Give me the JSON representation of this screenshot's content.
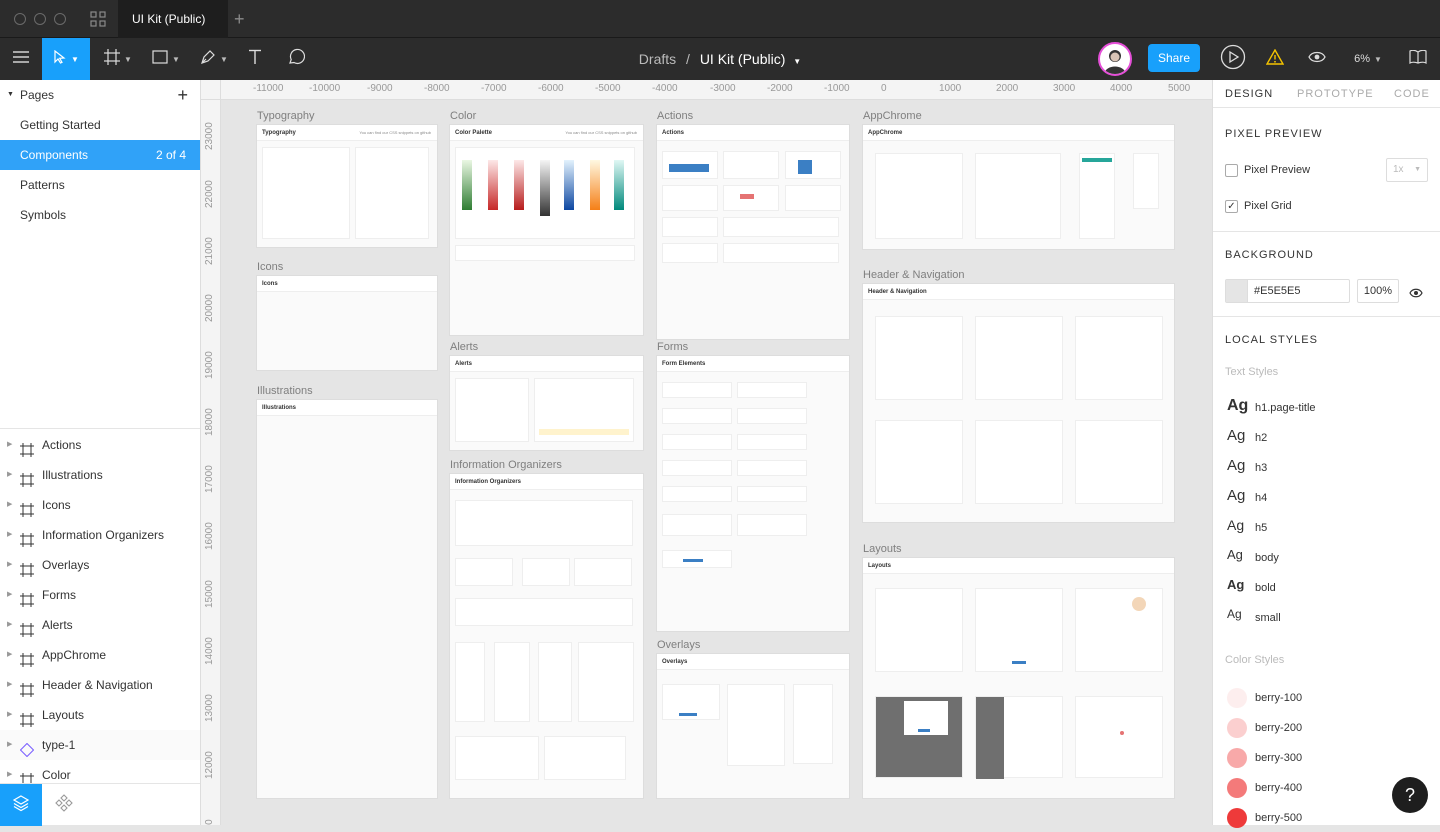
{
  "window": {
    "tab_title": "UI Kit (Public)",
    "new_tab": "+"
  },
  "toolbar": {
    "breadcrumb_parent": "Drafts",
    "breadcrumb_sep": "/",
    "file_name": "UI Kit (Public)",
    "share_label": "Share",
    "zoom": "6%"
  },
  "pages": {
    "header": "Pages",
    "add": "+",
    "items": [
      {
        "label": "Getting Started"
      },
      {
        "label": "Components",
        "count": "2 of 4",
        "selected": true
      },
      {
        "label": "Patterns"
      },
      {
        "label": "Symbols"
      }
    ]
  },
  "layers": [
    {
      "label": "Actions"
    },
    {
      "label": "Illustrations"
    },
    {
      "label": "Icons"
    },
    {
      "label": "Information Organizers"
    },
    {
      "label": "Overlays"
    },
    {
      "label": "Forms"
    },
    {
      "label": "Alerts"
    },
    {
      "label": "AppChrome"
    },
    {
      "label": "Header & Navigation"
    },
    {
      "label": "Layouts"
    },
    {
      "label": "type-1",
      "component": true
    },
    {
      "label": "Color"
    }
  ],
  "ruler": {
    "top": [
      "-11000",
      "-10000",
      "-9000",
      "-8000",
      "-7000",
      "-6000",
      "-5000",
      "-4000",
      "-3000",
      "-2000",
      "-1000",
      "0",
      "1000",
      "2000",
      "3000",
      "4000",
      "5000"
    ],
    "left": [
      "23000",
      "22000",
      "21000",
      "20000",
      "19000",
      "18000",
      "17000",
      "16000",
      "15000",
      "14000",
      "13000",
      "12000",
      "000"
    ]
  },
  "canvas": {
    "frames": {
      "typography": {
        "label": "Typography",
        "header": "Typography",
        "note": "You can find our CSS snippets on github"
      },
      "icons": {
        "label": "Icons",
        "header": "Icons"
      },
      "illustrations": {
        "label": "Illustrations",
        "header": "Illustrations"
      },
      "color": {
        "label": "Color",
        "header": "Color Palette",
        "note": "You can find our CSS snippets on github"
      },
      "alerts": {
        "label": "Alerts",
        "header": "Alerts"
      },
      "infoorg": {
        "label": "Information Organizers",
        "header": "Information Organizers"
      },
      "actions": {
        "label": "Actions",
        "header": "Actions"
      },
      "forms": {
        "label": "Forms",
        "header": "Form Elements"
      },
      "overlays": {
        "label": "Overlays",
        "header": "Overlays"
      },
      "appchrome": {
        "label": "AppChrome",
        "header": "AppChrome"
      },
      "headernav": {
        "label": "Header & Navigation",
        "header": "Header & Navigation"
      },
      "layouts": {
        "label": "Layouts",
        "header": "Layouts"
      }
    }
  },
  "inspector": {
    "tabs": [
      "DESIGN",
      "PROTOTYPE",
      "CODE"
    ],
    "pixel_preview": {
      "title": "PIXEL PREVIEW",
      "preview_label": "Pixel Preview",
      "grid_label": "Pixel Grid",
      "scale": "1x",
      "preview_checked": false,
      "grid_checked": true
    },
    "background": {
      "title": "BACKGROUND",
      "hex": "#E5E5E5",
      "opacity": "100%"
    },
    "local_styles": {
      "title": "LOCAL STYLES",
      "text_title": "Text Styles",
      "sample": "Ag",
      "text_styles": [
        {
          "name": "h1.page-title",
          "size": 16,
          "weight": "bold"
        },
        {
          "name": "h2",
          "size": 15,
          "weight": "normal"
        },
        {
          "name": "h3",
          "size": 15,
          "weight": "normal"
        },
        {
          "name": "h4",
          "size": 15,
          "weight": "normal"
        },
        {
          "name": "h5",
          "size": 14,
          "weight": "normal"
        },
        {
          "name": "body",
          "size": 13,
          "weight": "normal"
        },
        {
          "name": "bold",
          "size": 13,
          "weight": "bold"
        },
        {
          "name": "small",
          "size": 12,
          "weight": "normal"
        }
      ],
      "color_title": "Color Styles",
      "color_styles": [
        {
          "name": "berry-100",
          "color": "#fdeeee"
        },
        {
          "name": "berry-200",
          "color": "#fbcfcf"
        },
        {
          "name": "berry-300",
          "color": "#f8a9a9"
        },
        {
          "name": "berry-400",
          "color": "#f47a7a"
        },
        {
          "name": "berry-500",
          "color": "#ee3a3a"
        }
      ]
    }
  },
  "help": "?",
  "colors": {
    "accent": "#18a0fb",
    "selection": "#30a2f8",
    "chrome": "#2c2c2c",
    "avatar_ring": "#e54fd8",
    "warning": "#f5c400"
  }
}
